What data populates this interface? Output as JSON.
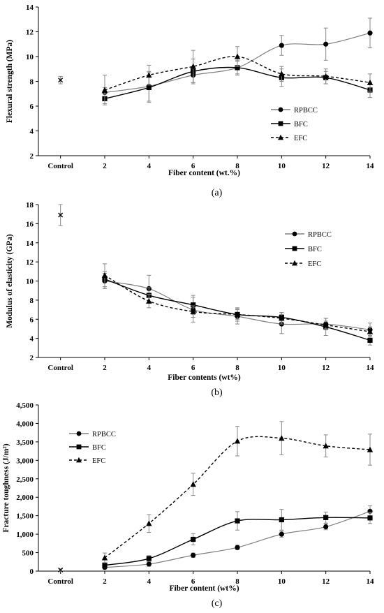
{
  "chart_data": [
    {
      "type": "line",
      "panel_label": "(a)",
      "xlabel": "Fiber content (wt.%)",
      "ylabel": "Flexural strength (MPa)",
      "categories": [
        "Control",
        "2",
        "4",
        "6",
        "8",
        "10",
        "12",
        "14"
      ],
      "ylim": [
        2,
        14
      ],
      "yticks": [
        "2",
        "4",
        "6",
        "8",
        "10",
        "12",
        "14"
      ],
      "control": {
        "value": 8.1,
        "err": 0.3
      },
      "legend_position": "right",
      "series": [
        {
          "name": "RPBCC",
          "marker": "circle",
          "line": "solid",
          "color": "#808080",
          "x": [
            2,
            4,
            6,
            8,
            10,
            12,
            14
          ],
          "values": [
            7.1,
            7.6,
            8.5,
            9.1,
            10.9,
            11.0,
            11.9
          ],
          "err": [
            0.4,
            1.2,
            0.6,
            0.5,
            0.8,
            1.3,
            1.2
          ]
        },
        {
          "name": "BFC",
          "marker": "square",
          "line": "solid",
          "color": "#000000",
          "x": [
            2,
            4,
            6,
            8,
            10,
            12,
            14
          ],
          "values": [
            6.6,
            7.5,
            8.8,
            9.1,
            8.3,
            8.3,
            7.3
          ],
          "err": [
            0.4,
            1.2,
            1.0,
            0.6,
            0.7,
            0.5,
            0.6
          ]
        },
        {
          "name": "EFC",
          "marker": "triangle",
          "line": "dashed",
          "color": "#000000",
          "x": [
            2,
            4,
            6,
            8,
            10,
            12,
            14
          ],
          "values": [
            7.3,
            8.5,
            9.2,
            10.0,
            8.6,
            8.4,
            7.9
          ],
          "err": [
            1.2,
            0.8,
            1.3,
            0.8,
            0.6,
            0.6,
            0.7
          ]
        }
      ]
    },
    {
      "type": "line",
      "panel_label": "(b)",
      "xlabel": "Fiber contents (wt%)",
      "ylabel": "Modulus of elasticity (GPa)",
      "categories": [
        "Control",
        "2",
        "4",
        "6",
        "8",
        "10",
        "12",
        "14"
      ],
      "ylim": [
        2,
        18
      ],
      "yticks": [
        "2",
        "4",
        "6",
        "8",
        "10",
        "12",
        "14",
        "16",
        "18"
      ],
      "control": {
        "value": 16.9,
        "err": 1.1
      },
      "legend_position": "right",
      "series": [
        {
          "name": "RPBCC",
          "marker": "circle",
          "line": "solid",
          "color": "#808080",
          "x": [
            2,
            4,
            6,
            8,
            10,
            12,
            14
          ],
          "values": [
            10.0,
            9.2,
            7.0,
            6.3,
            5.5,
            5.5,
            4.9
          ],
          "err": [
            0.8,
            1.4,
            1.3,
            0.8,
            1.0,
            0.6,
            0.7
          ]
        },
        {
          "name": "BFC",
          "marker": "square",
          "line": "solid",
          "color": "#000000",
          "x": [
            2,
            4,
            6,
            8,
            10,
            12,
            14
          ],
          "values": [
            10.2,
            8.5,
            7.5,
            6.5,
            6.2,
            5.2,
            3.8
          ],
          "err": [
            0.8,
            0.8,
            1.0,
            0.7,
            0.5,
            0.9,
            0.5
          ]
        },
        {
          "name": "EFC",
          "marker": "triangle",
          "line": "dashed",
          "color": "#000000",
          "x": [
            2,
            4,
            6,
            8,
            10,
            12,
            14
          ],
          "values": [
            10.6,
            7.9,
            6.8,
            6.5,
            6.1,
            5.4,
            4.7
          ],
          "err": [
            1.2,
            0.7,
            0.6,
            0.5,
            0.6,
            0.4,
            0.5
          ]
        }
      ]
    },
    {
      "type": "line",
      "panel_label": "(c)",
      "xlabel": "Fiber content (wt%)",
      "ylabel": "Fracture toughness (J/m²)",
      "categories": [
        "Control",
        "2",
        "4",
        "6",
        "8",
        "10",
        "12",
        "14"
      ],
      "ylim": [
        0,
        4500
      ],
      "yticks": [
        "0",
        "500",
        "1,000",
        "1,500",
        "2,000",
        "2,500",
        "3,000",
        "3,500",
        "4,000",
        "4,500"
      ],
      "control": {
        "value": 30,
        "err": 30
      },
      "legend_position": "top-left",
      "series": [
        {
          "name": "RPBCC",
          "marker": "circle",
          "line": "solid",
          "color": "#808080",
          "x": [
            2,
            4,
            6,
            8,
            10,
            12,
            14
          ],
          "values": [
            100,
            190,
            430,
            640,
            1000,
            1200,
            1620
          ],
          "err": [
            40,
            60,
            60,
            60,
            80,
            80,
            150
          ]
        },
        {
          "name": "BFC",
          "marker": "square",
          "line": "solid",
          "color": "#000000",
          "x": [
            2,
            4,
            6,
            8,
            10,
            12,
            14
          ],
          "values": [
            160,
            340,
            860,
            1360,
            1390,
            1450,
            1440
          ],
          "err": [
            60,
            80,
            150,
            250,
            280,
            150,
            150
          ]
        },
        {
          "name": "EFC",
          "marker": "triangle",
          "line": "dashed",
          "color": "#000000",
          "x": [
            2,
            4,
            6,
            8,
            10,
            12,
            14
          ],
          "values": [
            360,
            1290,
            2350,
            3520,
            3600,
            3390,
            3290
          ],
          "err": [
            130,
            240,
            300,
            400,
            450,
            300,
            420
          ]
        }
      ]
    }
  ]
}
